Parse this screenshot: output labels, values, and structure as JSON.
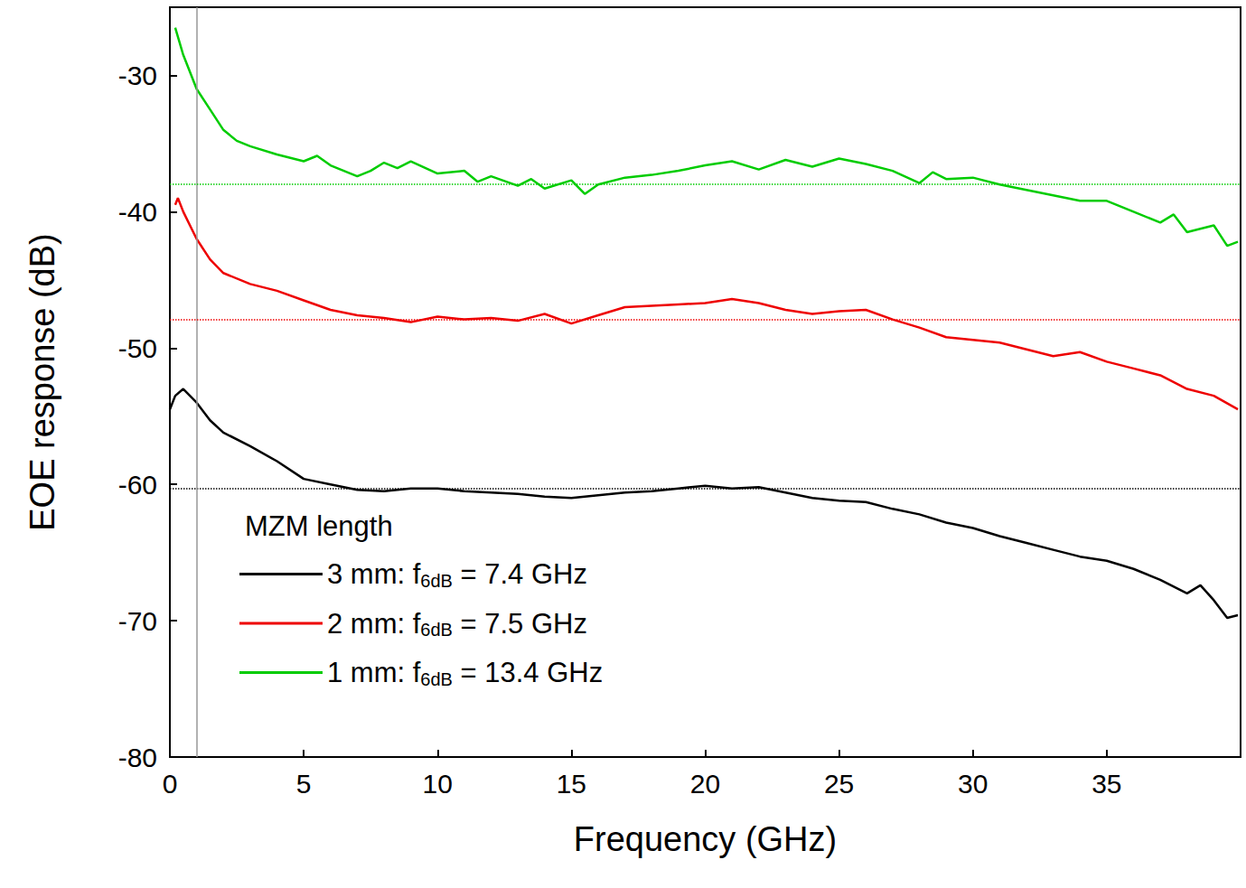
{
  "chart_data": {
    "type": "line",
    "x_label": "Frequency (GHz)",
    "y_label": "EOE response (dB)",
    "xlim": [
      0,
      40
    ],
    "ylim": [
      -80,
      -25
    ],
    "xticks": [
      0,
      5,
      10,
      15,
      20,
      25,
      30,
      35
    ],
    "yticks": [
      -80,
      -70,
      -60,
      -50,
      -40,
      -30
    ],
    "grid": false,
    "legend": "lower left",
    "legend_title": "MZM length",
    "vline_x": 1.0,
    "series": [
      {
        "name": "3 mm: f6dB = 7.4 GHz",
        "subscript": "6dB",
        "color": "#000000",
        "reference": -60.3,
        "x": [
          0,
          0.2,
          0.5,
          1,
          1.5,
          2,
          3,
          4,
          5,
          6,
          7,
          8,
          9,
          10,
          11,
          12,
          13,
          14,
          15,
          16,
          17,
          18,
          19,
          20,
          21,
          22,
          23,
          24,
          25,
          26,
          27,
          28,
          29,
          30,
          31,
          32,
          33,
          34,
          35,
          36,
          37,
          38,
          38.5,
          39,
          39.5,
          39.9
        ],
        "values": [
          -54.5,
          -53.5,
          -53,
          -54,
          -55.3,
          -56.2,
          -57.2,
          -58.3,
          -59.6,
          -60,
          -60.4,
          -60.5,
          -60.3,
          -60.3,
          -60.5,
          -60.6,
          -60.7,
          -60.9,
          -61,
          -60.8,
          -60.6,
          -60.5,
          -60.3,
          -60.1,
          -60.3,
          -60.2,
          -60.6,
          -61,
          -61.2,
          -61.3,
          -61.8,
          -62.2,
          -62.8,
          -63.2,
          -63.8,
          -64.3,
          -64.8,
          -65.3,
          -65.6,
          -66.2,
          -67,
          -68,
          -67.4,
          -68.5,
          -69.8,
          -69.6
        ]
      },
      {
        "name": "2 mm: f6dB = 7.5 GHz",
        "subscript": "6dB",
        "color": "#ee0000",
        "reference": -47.9,
        "x": [
          0.2,
          0.3,
          0.5,
          1,
          1.5,
          2,
          3,
          4,
          5,
          6,
          7,
          8,
          9,
          10,
          11,
          12,
          13,
          14,
          15,
          16,
          17,
          18,
          19,
          20,
          21,
          22,
          23,
          24,
          25,
          26,
          27,
          28,
          29,
          30,
          31,
          32,
          33,
          34,
          35,
          36,
          37,
          38,
          39,
          39.9
        ],
        "values": [
          -39.5,
          -39,
          -40,
          -42,
          -43.5,
          -44.5,
          -45.3,
          -45.8,
          -46.5,
          -47.2,
          -47.6,
          -47.8,
          -48.1,
          -47.7,
          -47.9,
          -47.8,
          -48,
          -47.5,
          -48.2,
          -47.6,
          -47,
          -46.9,
          -46.8,
          -46.7,
          -46.4,
          -46.7,
          -47.2,
          -47.5,
          -47.3,
          -47.2,
          -47.9,
          -48.5,
          -49.2,
          -49.4,
          -49.6,
          -50.1,
          -50.6,
          -50.3,
          -51,
          -51.5,
          -52,
          -53,
          -53.5,
          -54.5
        ]
      },
      {
        "name": "1 mm: f6dB = 13.4 GHz",
        "subscript": "6dB",
        "color": "#00cc00",
        "reference": -38.0,
        "x": [
          0.2,
          0.5,
          1,
          1.5,
          2,
          2.5,
          3,
          4,
          5,
          5.5,
          6,
          7,
          7.5,
          8,
          8.5,
          9,
          10,
          11,
          11.5,
          12,
          13,
          13.5,
          14,
          15,
          15.5,
          16,
          17,
          18,
          19,
          20,
          21,
          22,
          23,
          24,
          25,
          26,
          27,
          28,
          28.5,
          29,
          30,
          31,
          32,
          33,
          34,
          35,
          36,
          37,
          37.5,
          38,
          39,
          39.5,
          39.9
        ],
        "values": [
          -26.5,
          -28.5,
          -31,
          -32.5,
          -34,
          -34.8,
          -35.2,
          -35.8,
          -36.3,
          -35.9,
          -36.6,
          -37.4,
          -37,
          -36.4,
          -36.8,
          -36.3,
          -37.2,
          -37,
          -37.8,
          -37.4,
          -38.1,
          -37.6,
          -38.3,
          -37.7,
          -38.7,
          -38,
          -37.5,
          -37.3,
          -37,
          -36.6,
          -36.3,
          -36.9,
          -36.2,
          -36.7,
          -36.1,
          -36.5,
          -37,
          -37.9,
          -37.1,
          -37.6,
          -37.5,
          -38,
          -38.4,
          -38.8,
          -39.2,
          -39.2,
          -40,
          -40.8,
          -40.2,
          -41.5,
          -41,
          -42.5,
          -42.2
        ]
      }
    ]
  }
}
